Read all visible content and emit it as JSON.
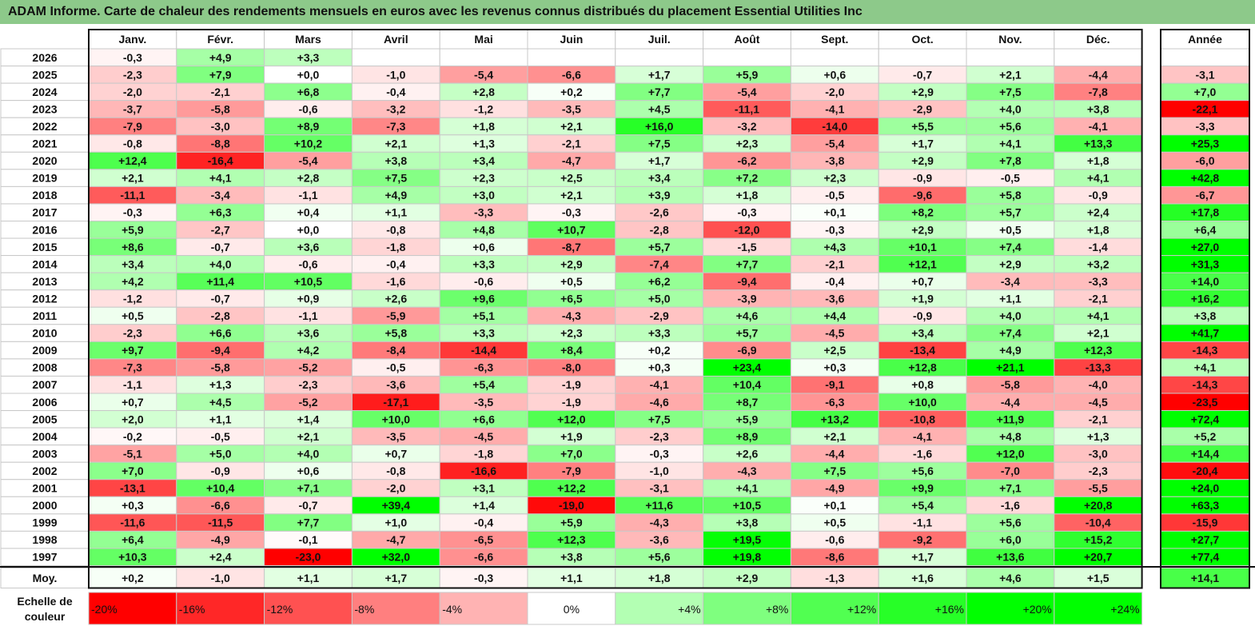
{
  "title": "ADAM Informe. Carte de chaleur des rendements mensuels en euros avec les revenus connus distribués du placement Essential Utilities Inc",
  "chart_data": {
    "type": "heatmap",
    "months": [
      "Janv.",
      "Févr.",
      "Mars",
      "Avril",
      "Mai",
      "Juin",
      "Juil.",
      "Août",
      "Sept.",
      "Oct.",
      "Nov.",
      "Déc."
    ],
    "year_header": "Année",
    "rows": [
      {
        "year": "2026",
        "values": [
          -0.3,
          4.9,
          3.3,
          null,
          null,
          null,
          null,
          null,
          null,
          null,
          null,
          null
        ],
        "annual": null
      },
      {
        "year": "2025",
        "values": [
          -2.3,
          7.9,
          0.0,
          -1.0,
          -5.4,
          -6.6,
          1.7,
          5.9,
          0.6,
          -0.7,
          2.1,
          -4.4
        ],
        "annual": -3.1
      },
      {
        "year": "2024",
        "values": [
          -2.0,
          -2.1,
          6.8,
          -0.4,
          2.8,
          0.2,
          7.7,
          -5.4,
          -2.0,
          2.9,
          7.5,
          -7.8
        ],
        "annual": 7.0
      },
      {
        "year": "2023",
        "values": [
          -3.7,
          -5.8,
          -0.6,
          -3.2,
          -1.2,
          -3.5,
          4.5,
          -11.1,
          -4.1,
          -2.9,
          4.0,
          3.8
        ],
        "annual": -22.1
      },
      {
        "year": "2022",
        "values": [
          -7.9,
          -3.0,
          8.9,
          -7.3,
          1.8,
          2.1,
          16.0,
          -3.2,
          -14.0,
          5.5,
          5.6,
          -4.1
        ],
        "annual": -3.3
      },
      {
        "year": "2021",
        "values": [
          -0.8,
          -8.8,
          10.2,
          2.1,
          1.3,
          -2.1,
          7.5,
          2.3,
          -5.4,
          1.7,
          4.1,
          13.3
        ],
        "annual": 25.3
      },
      {
        "year": "2020",
        "values": [
          12.4,
          -16.4,
          -5.4,
          3.8,
          3.4,
          -4.7,
          1.7,
          -6.2,
          -3.8,
          2.9,
          7.8,
          1.8
        ],
        "annual": -6.0
      },
      {
        "year": "2019",
        "values": [
          2.1,
          4.1,
          2.8,
          7.5,
          2.3,
          2.5,
          3.4,
          7.2,
          2.3,
          -0.9,
          -0.5,
          4.1
        ],
        "annual": 42.8
      },
      {
        "year": "2018",
        "values": [
          -11.1,
          -3.4,
          -1.1,
          4.9,
          3.0,
          2.1,
          3.9,
          1.8,
          -0.5,
          -9.6,
          5.8,
          -0.9
        ],
        "annual": -6.7
      },
      {
        "year": "2017",
        "values": [
          -0.3,
          6.3,
          0.4,
          1.1,
          -3.3,
          -0.3,
          -2.6,
          -0.3,
          0.1,
          8.2,
          5.7,
          2.4
        ],
        "annual": 17.8
      },
      {
        "year": "2016",
        "values": [
          5.9,
          -2.7,
          0.0,
          -0.8,
          4.8,
          10.7,
          -2.8,
          -12.0,
          -0.3,
          2.9,
          0.5,
          1.8
        ],
        "annual": 6.4
      },
      {
        "year": "2015",
        "values": [
          8.6,
          -0.7,
          3.6,
          -1.8,
          0.6,
          -8.7,
          5.7,
          -1.5,
          4.3,
          10.1,
          7.4,
          -1.4
        ],
        "annual": 27.0
      },
      {
        "year": "2014",
        "values": [
          3.4,
          4.0,
          -0.6,
          -0.4,
          3.3,
          2.9,
          -7.4,
          7.7,
          -2.1,
          12.1,
          2.9,
          3.2
        ],
        "annual": 31.3
      },
      {
        "year": "2013",
        "values": [
          4.2,
          11.4,
          10.5,
          -1.6,
          -0.6,
          0.5,
          6.2,
          -9.4,
          -0.4,
          0.7,
          -3.4,
          -3.3
        ],
        "annual": 14.0
      },
      {
        "year": "2012",
        "values": [
          -1.2,
          -0.7,
          0.9,
          2.6,
          9.6,
          6.5,
          5.0,
          -3.9,
          -3.6,
          1.9,
          1.1,
          -2.1
        ],
        "annual": 16.2
      },
      {
        "year": "2011",
        "values": [
          0.5,
          -2.8,
          -1.1,
          -5.9,
          5.1,
          -4.3,
          -2.9,
          4.6,
          4.4,
          -0.9,
          4.0,
          4.1
        ],
        "annual": 3.8
      },
      {
        "year": "2010",
        "values": [
          -2.3,
          6.6,
          3.6,
          5.8,
          3.3,
          2.3,
          3.3,
          5.7,
          -4.5,
          3.4,
          7.4,
          2.1
        ],
        "annual": 41.7
      },
      {
        "year": "2009",
        "values": [
          9.7,
          -9.4,
          4.2,
          -8.4,
          -14.4,
          8.4,
          0.2,
          -6.9,
          2.5,
          -13.4,
          4.9,
          12.3
        ],
        "annual": -14.3
      },
      {
        "year": "2008",
        "values": [
          -7.3,
          -5.8,
          -5.2,
          -0.5,
          -6.3,
          -8.0,
          0.3,
          23.4,
          0.3,
          12.8,
          21.1,
          -13.3
        ],
        "annual": 4.1
      },
      {
        "year": "2007",
        "values": [
          -1.1,
          1.3,
          -2.3,
          -3.6,
          5.4,
          -1.9,
          -4.1,
          10.4,
          -9.1,
          0.8,
          -5.8,
          -4.0
        ],
        "annual": -14.3
      },
      {
        "year": "2006",
        "values": [
          0.7,
          4.5,
          -5.2,
          -17.1,
          -3.5,
          -1.9,
          -4.6,
          8.7,
          -6.3,
          10.0,
          -4.4,
          -4.5
        ],
        "annual": -23.5
      },
      {
        "year": "2005",
        "values": [
          2.0,
          1.1,
          1.4,
          10.0,
          6.6,
          12.0,
          7.5,
          5.9,
          13.2,
          -10.8,
          11.9,
          -2.1
        ],
        "annual": 72.4
      },
      {
        "year": "2004",
        "values": [
          -0.2,
          -0.5,
          2.1,
          -3.5,
          -4.5,
          1.9,
          -2.3,
          8.9,
          2.1,
          -4.1,
          4.8,
          1.3
        ],
        "annual": 5.2
      },
      {
        "year": "2003",
        "values": [
          -5.1,
          5.0,
          4.0,
          0.7,
          -1.8,
          7.0,
          -0.3,
          2.6,
          -4.4,
          -1.6,
          12.0,
          -3.0
        ],
        "annual": 14.4
      },
      {
        "year": "2002",
        "values": [
          7.0,
          -0.9,
          0.6,
          -0.8,
          -16.6,
          -7.9,
          -1.0,
          -4.3,
          7.5,
          5.6,
          -7.0,
          -2.3
        ],
        "annual": -20.4
      },
      {
        "year": "2001",
        "values": [
          -13.1,
          10.4,
          7.1,
          -2.0,
          3.1,
          12.2,
          -3.1,
          4.1,
          -4.9,
          9.9,
          7.1,
          -5.5
        ],
        "annual": 24.0
      },
      {
        "year": "2000",
        "values": [
          0.3,
          -6.6,
          -0.7,
          39.4,
          1.4,
          -19.0,
          11.6,
          10.5,
          0.1,
          5.4,
          -1.6,
          20.8
        ],
        "annual": 63.3
      },
      {
        "year": "1999",
        "values": [
          -11.6,
          -11.5,
          7.7,
          1.0,
          -0.4,
          5.9,
          -4.3,
          3.8,
          0.5,
          -1.1,
          5.6,
          -10.4
        ],
        "annual": -15.9
      },
      {
        "year": "1998",
        "values": [
          6.4,
          -4.9,
          -0.1,
          -4.7,
          -6.5,
          12.3,
          -3.6,
          19.5,
          -0.6,
          -9.2,
          6.0,
          15.2
        ],
        "annual": 27.7
      },
      {
        "year": "1997",
        "values": [
          10.3,
          2.4,
          -23.0,
          32.0,
          -6.6,
          3.8,
          5.6,
          19.8,
          -8.6,
          1.7,
          13.6,
          20.7
        ],
        "annual": 77.4
      }
    ],
    "average": {
      "label": "Moy.",
      "values": [
        0.2,
        -1.0,
        1.1,
        1.7,
        -0.3,
        1.1,
        1.8,
        2.9,
        -1.3,
        1.6,
        4.6,
        1.5
      ],
      "annual": 14.1
    },
    "scale": {
      "label_line1": "Echelle de",
      "label_line2": "couleur",
      "steps": [
        {
          "label": "-20%",
          "value": -20
        },
        {
          "label": "-16%",
          "value": -16
        },
        {
          "label": "-12%",
          "value": -12
        },
        {
          "label": "-8%",
          "value": -8
        },
        {
          "label": "-4%",
          "value": -4
        },
        {
          "label": "0%",
          "value": 0
        },
        {
          "label": "+4%",
          "value": 4
        },
        {
          "label": "+8%",
          "value": 8
        },
        {
          "label": "+12%",
          "value": 12
        },
        {
          "label": "+16%",
          "value": 16
        },
        {
          "label": "+20%",
          "value": 20
        },
        {
          "label": "+24%",
          "value": 24
        }
      ]
    },
    "colors": {
      "negative_max": "#ff0000",
      "neutral": "#ffffff",
      "positive_max": "#00ff00",
      "title_background": "#8dc98a"
    }
  }
}
